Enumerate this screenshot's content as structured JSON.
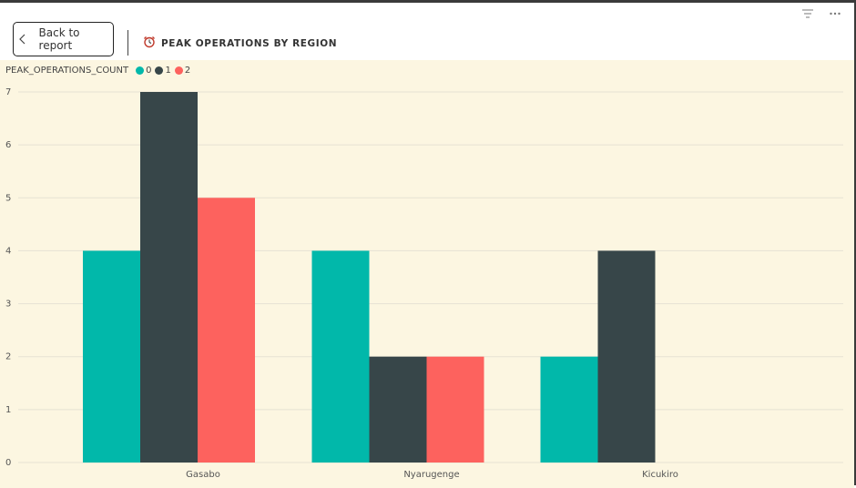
{
  "header": {
    "back_label": "Back to report",
    "title": "PEAK OPERATIONS BY REGION"
  },
  "icons": {
    "filter": "filter-icon",
    "more": "more-options-icon",
    "back": "chevron-left-icon",
    "title": "alarm-clock-icon"
  },
  "colors": {
    "series_0": "#01b8aa",
    "series_1": "#374649",
    "series_2": "#fd625e",
    "background": "#fcf6e1"
  },
  "chart_data": {
    "type": "bar",
    "legend_title": "PEAK_OPERATIONS_COUNT",
    "legend_position": "top-left",
    "categories": [
      "Gasabo",
      "Nyarugenge",
      "Kicukiro"
    ],
    "series": [
      {
        "name": "0",
        "values": [
          4,
          4,
          2
        ]
      },
      {
        "name": "1",
        "values": [
          7,
          2,
          4
        ]
      },
      {
        "name": "2",
        "values": [
          5,
          2,
          0
        ]
      }
    ],
    "y_ticks": [
      "0",
      "1",
      "2",
      "3",
      "4",
      "5",
      "6",
      "7"
    ],
    "ylim": [
      0,
      7
    ],
    "grid": true,
    "xlabel": "",
    "ylabel": ""
  }
}
